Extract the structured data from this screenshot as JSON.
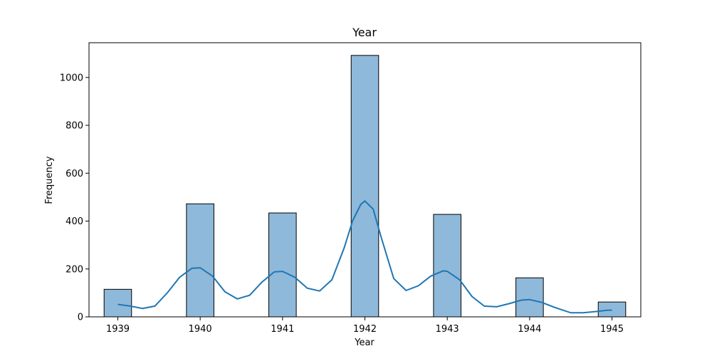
{
  "chart_data": {
    "type": "bar",
    "title": "Year",
    "xlabel": "Year",
    "ylabel": "Frequency",
    "categories": [
      "1939",
      "1940",
      "1941",
      "1942",
      "1943",
      "1944",
      "1945"
    ],
    "x_ticks": [
      1939,
      1940,
      1941,
      1942,
      1943,
      1944,
      1945
    ],
    "y_ticks": [
      0,
      200,
      400,
      600,
      800,
      1000
    ],
    "xlim": [
      1938.65,
      1945.35
    ],
    "ylim": [
      0,
      1145
    ],
    "bar_width_years": 0.3333,
    "values": [
      115,
      472,
      434,
      1092,
      428,
      163,
      62
    ],
    "kde": {
      "x": [
        1939.0,
        1939.15,
        1939.3,
        1939.45,
        1939.6,
        1939.75,
        1939.9,
        1940.0,
        1940.15,
        1940.3,
        1940.45,
        1940.6,
        1940.75,
        1940.9,
        1941.0,
        1941.15,
        1941.3,
        1941.45,
        1941.6,
        1941.75,
        1941.85,
        1941.95,
        1942.0,
        1942.1,
        1942.2,
        1942.35,
        1942.5,
        1942.65,
        1942.8,
        1942.95,
        1943.0,
        1943.15,
        1943.3,
        1943.45,
        1943.6,
        1943.75,
        1943.9,
        1944.0,
        1944.15,
        1944.3,
        1944.5,
        1944.65,
        1944.8,
        1944.95,
        1945.0
      ],
      "y": [
        52,
        45,
        35,
        45,
        100,
        165,
        203,
        205,
        170,
        105,
        75,
        90,
        145,
        188,
        190,
        165,
        120,
        108,
        155,
        290,
        400,
        470,
        484,
        450,
        330,
        160,
        110,
        130,
        170,
        192,
        190,
        155,
        85,
        45,
        42,
        55,
        70,
        72,
        60,
        40,
        17,
        17,
        22,
        28,
        28
      ]
    },
    "colors": {
      "bar_fill": "#8fb9da",
      "bar_edge": "#000000",
      "kde_line": "#1f77b4"
    }
  }
}
